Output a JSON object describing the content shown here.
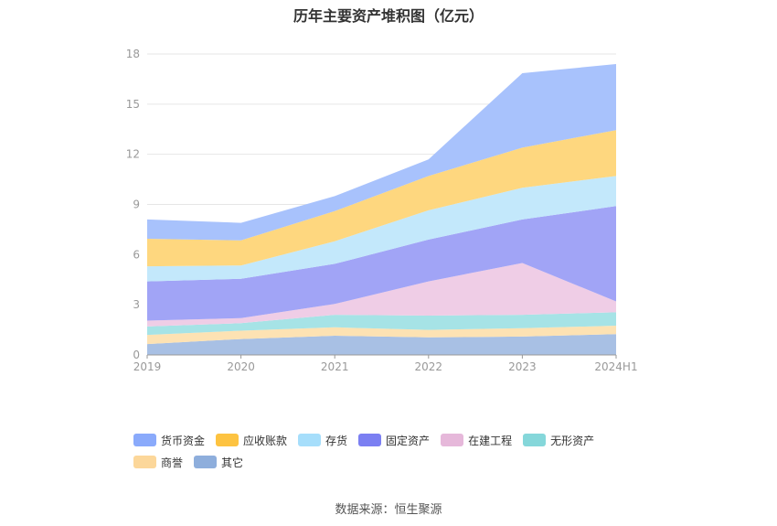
{
  "title": "历年主要资产堆积图（亿元）",
  "source": "数据来源：恒生聚源",
  "chart_data": {
    "type": "area",
    "stacked": true,
    "categories": [
      "2019",
      "2020",
      "2021",
      "2022",
      "2023",
      "2024H1"
    ],
    "ylim": [
      0,
      18
    ],
    "yticks": [
      0,
      3,
      6,
      9,
      12,
      15,
      18
    ],
    "grid": true,
    "legend_position": "bottom",
    "series": [
      {
        "name": "其它",
        "color": "#a8c0e4",
        "values": [
          0.65,
          0.95,
          1.15,
          1.05,
          1.1,
          1.25
        ]
      },
      {
        "name": "商誉",
        "color": "#fde2b3",
        "values": [
          0.55,
          0.5,
          0.5,
          0.45,
          0.5,
          0.5
        ]
      },
      {
        "name": "无形资产",
        "color": "#a6e3e6",
        "values": [
          0.5,
          0.45,
          0.75,
          0.85,
          0.8,
          0.8
        ]
      },
      {
        "name": "在建工程",
        "color": "#efcde6",
        "values": [
          0.35,
          0.3,
          0.65,
          2.05,
          3.1,
          0.65
        ]
      },
      {
        "name": "固定资产",
        "color": "#a1a4f6",
        "values": [
          2.35,
          2.35,
          2.4,
          2.5,
          2.6,
          5.7
        ]
      },
      {
        "name": "存货",
        "color": "#c3e8fb",
        "values": [
          0.9,
          0.8,
          1.35,
          1.75,
          1.9,
          1.8
        ]
      },
      {
        "name": "应收账款",
        "color": "#fed77f",
        "values": [
          1.65,
          1.5,
          1.8,
          2.05,
          2.4,
          2.75
        ]
      },
      {
        "name": "货币资金",
        "color": "#a8c2fc",
        "values": [
          1.15,
          1.05,
          0.9,
          1.0,
          4.45,
          3.95
        ]
      }
    ]
  },
  "legend": [
    {
      "name": "货币资金",
      "color": "#8aaafb"
    },
    {
      "name": "应收账款",
      "color": "#fdc341"
    },
    {
      "name": "存货",
      "color": "#a6defb"
    },
    {
      "name": "固定资产",
      "color": "#7b7ff2"
    },
    {
      "name": "在建工程",
      "color": "#e6b8da"
    },
    {
      "name": "无形资产",
      "color": "#85d7da"
    },
    {
      "name": "商誉",
      "color": "#fcd79a"
    },
    {
      "name": "其它",
      "color": "#8eaedc"
    }
  ]
}
